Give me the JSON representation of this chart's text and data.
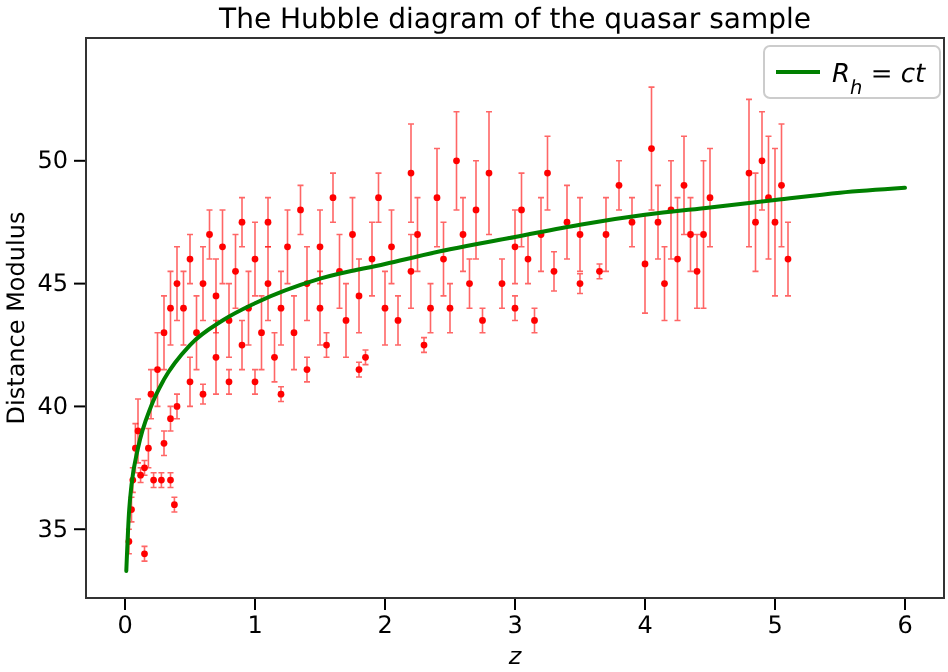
{
  "chart_data": {
    "type": "scatter",
    "title": "The Hubble diagram of the quasar sample",
    "xlabel": "z",
    "ylabel": "Distance Modulus",
    "xlim": [
      -0.3,
      6.3
    ],
    "ylim": [
      32.2,
      55
    ],
    "xticks": [
      0,
      1,
      2,
      3,
      4,
      5,
      6
    ],
    "yticks": [
      35,
      40,
      45,
      50
    ],
    "legend": "top right",
    "series": [
      {
        "color": "#ff0000",
        "marker": "circle",
        "x": [
          0.03,
          0.05,
          0.06,
          0.08,
          0.1,
          0.12,
          0.15,
          0.15,
          0.18,
          0.2,
          0.22,
          0.28,
          0.35,
          0.38,
          0.25,
          0.3,
          0.35,
          0.3,
          0.35,
          0.4,
          0.45,
          0.4,
          0.5,
          0.5,
          0.55,
          0.6,
          0.6,
          0.65,
          0.7,
          0.7,
          0.75,
          0.8,
          0.8,
          0.85,
          0.9,
          0.9,
          0.95,
          1.0,
          1.0,
          1.05,
          1.1,
          1.1,
          1.15,
          1.2,
          1.2,
          1.25,
          1.3,
          1.35,
          1.4,
          1.4,
          1.5,
          1.5,
          1.55,
          1.6,
          1.65,
          1.7,
          1.75,
          1.8,
          1.8,
          1.85,
          1.9,
          1.95,
          2.0,
          2.05,
          2.1,
          2.2,
          2.2,
          2.25,
          2.3,
          2.35,
          2.4,
          2.45,
          2.5,
          2.55,
          2.6,
          2.65,
          2.7,
          2.75,
          2.8,
          2.9,
          3.0,
          3.0,
          3.05,
          3.1,
          3.15,
          3.2,
          3.25,
          3.3,
          3.4,
          3.5,
          3.5,
          3.65,
          3.7,
          3.8,
          3.9,
          4.0,
          4.05,
          4.1,
          4.15,
          4.2,
          4.25,
          4.3,
          4.35,
          4.4,
          4.45,
          4.5,
          4.8,
          4.85,
          4.9,
          4.95,
          5.0,
          5.05,
          5.1
        ],
        "values": [
          34.5,
          35.8,
          37,
          38.3,
          39,
          37.2,
          34,
          37.5,
          38.3,
          40.5,
          37,
          37,
          37,
          36,
          41.5,
          38.5,
          39.5,
          43,
          44,
          45,
          44,
          40,
          41,
          46,
          43,
          45,
          40.5,
          47,
          42,
          44.5,
          46.5,
          41,
          43.5,
          45.5,
          47.5,
          42.5,
          44,
          46,
          41,
          43,
          45,
          47.5,
          42,
          44,
          40.5,
          46.5,
          43,
          48,
          45,
          41.5,
          44,
          46.5,
          42.5,
          48.5,
          45.5,
          43.5,
          47,
          44.5,
          41.5,
          42,
          46,
          48.5,
          44,
          46.5,
          43.5,
          45.5,
          49.5,
          47,
          42.5,
          44,
          48.5,
          46,
          44,
          50,
          47,
          45,
          48,
          43.5,
          49.5,
          45,
          46.5,
          44,
          48,
          46,
          43.5,
          47,
          49.5,
          45.5,
          47.5,
          47,
          45,
          45.5,
          47,
          49,
          47.5,
          45.8,
          50.5,
          47.5,
          45,
          48,
          46,
          49,
          47,
          45.5,
          47,
          48.5,
          49.5,
          47.5,
          50,
          48.5,
          47.5,
          49,
          46
        ],
        "errors": [
          0.5,
          0.5,
          0.5,
          1,
          1.3,
          0.3,
          0.3,
          0.3,
          0.8,
          1,
          0.3,
          0.3,
          0.3,
          0.3,
          1.5,
          0.5,
          0.5,
          1.5,
          1.5,
          1.5,
          1.5,
          0.5,
          1,
          1,
          1.5,
          1.5,
          0.4,
          1,
          1.5,
          1.5,
          1.5,
          0.5,
          1.5,
          1.5,
          1,
          1,
          1.5,
          1.5,
          0.5,
          1.5,
          1.5,
          1,
          1,
          1.5,
          0.3,
          1.5,
          1.5,
          1,
          1.5,
          0.5,
          1.5,
          1.5,
          0.5,
          1,
          1.5,
          1.5,
          1.5,
          1.5,
          0.3,
          0.3,
          1.5,
          1,
          1.5,
          1.5,
          1,
          1.5,
          2,
          1.5,
          0.3,
          1,
          2,
          1.5,
          1,
          2,
          1.5,
          1,
          2,
          0.5,
          2.5,
          1,
          1.5,
          0.5,
          1.5,
          1,
          0.5,
          1.5,
          1.5,
          0.8,
          1.5,
          1.5,
          0.4,
          0.3,
          1.5,
          1,
          1,
          2,
          2.5,
          1.5,
          1.5,
          2,
          2.5,
          2,
          1.5,
          1.5,
          3,
          2,
          3,
          2,
          2,
          2.5,
          3,
          2.5,
          1.5
        ]
      },
      {
        "type": "line",
        "name": "R$_{h}$ = ct",
        "color": "#008000",
        "line_style": "solid",
        "x": [
          0.01,
          0.03,
          0.05,
          0.1,
          0.2,
          0.3,
          0.5,
          0.75,
          1,
          1.5,
          2,
          2.5,
          3,
          3.5,
          4,
          4.5,
          5,
          5.5,
          6
        ],
        "values": [
          33.3,
          35.6,
          36.8,
          38.3,
          40,
          41.1,
          42.5,
          43.5,
          44.2,
          45.2,
          45.8,
          46.4,
          46.9,
          47.4,
          47.8,
          48.1,
          48.4,
          48.7,
          48.9
        ]
      }
    ]
  }
}
